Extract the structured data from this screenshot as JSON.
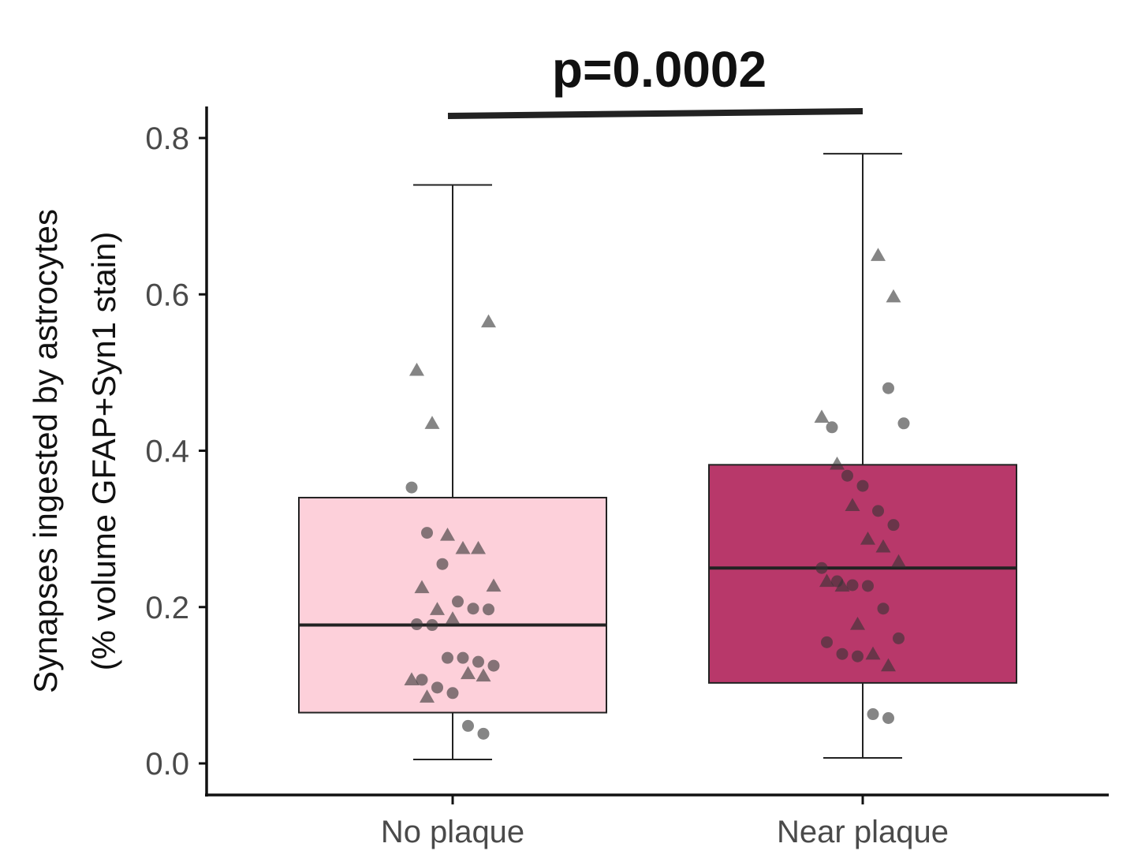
{
  "chart_data": {
    "type": "box",
    "title": "",
    "annotation": "p=0.0002",
    "xlabel": "",
    "ylabel_line1": "Synapses ingested by astrocytes",
    "ylabel_line2": "(% volume GFAP+Syn1 stain)",
    "ylim": [
      0,
      0.8
    ],
    "yticks": [
      "0.0",
      "0.2",
      "0.4",
      "0.6",
      "0.8"
    ],
    "categories": [
      "No plaque",
      "Near plaque"
    ],
    "grid": false,
    "colors": {
      "no_plaque_fill": "#fdd0da",
      "near_plaque_fill": "#b8386a",
      "axis": "#111111",
      "points": "#333333"
    },
    "boxes": [
      {
        "category": "No plaque",
        "min": 0.005,
        "q1": 0.065,
        "median": 0.177,
        "q3": 0.34,
        "max": 0.74,
        "circles": [
          0.353,
          0.295,
          0.255,
          0.207,
          0.198,
          0.197,
          0.178,
          0.177,
          0.135,
          0.135,
          0.13,
          0.125,
          0.107,
          0.097,
          0.09,
          0.048,
          0.038
        ],
        "triangles": [
          0.565,
          0.503,
          0.435,
          0.292,
          0.275,
          0.275,
          0.227,
          0.225,
          0.197,
          0.185,
          0.115,
          0.112,
          0.107,
          0.085
        ]
      },
      {
        "category": "Near plaque",
        "min": 0.007,
        "q1": 0.103,
        "median": 0.25,
        "q3": 0.382,
        "max": 0.78,
        "circles": [
          0.48,
          0.435,
          0.43,
          0.368,
          0.355,
          0.323,
          0.305,
          0.25,
          0.233,
          0.228,
          0.227,
          0.198,
          0.16,
          0.155,
          0.14,
          0.137,
          0.063,
          0.058
        ],
        "triangles": [
          0.65,
          0.597,
          0.443,
          0.383,
          0.33,
          0.287,
          0.277,
          0.258,
          0.233,
          0.227,
          0.178,
          0.14,
          0.125
        ]
      }
    ]
  }
}
